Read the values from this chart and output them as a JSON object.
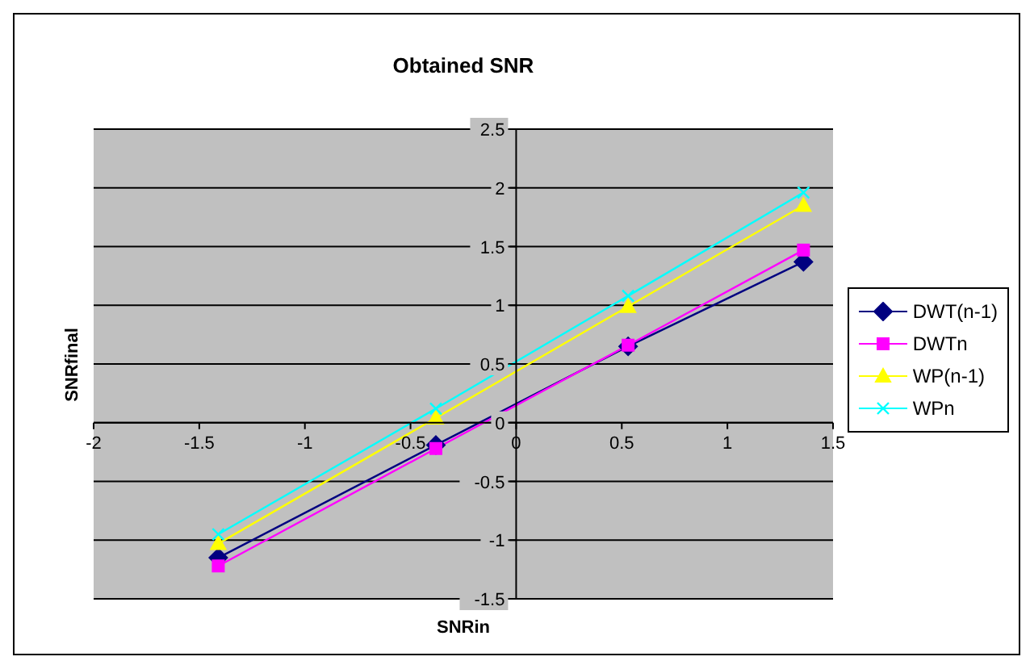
{
  "chart_data": {
    "type": "line",
    "title": "Obtained SNR",
    "xlabel": "SNRin",
    "ylabel": "SNRfinal",
    "x": [
      -1.41,
      -0.38,
      0.53,
      1.36
    ],
    "series": [
      {
        "name": "DWT(n-1)",
        "color": "#000080",
        "marker": "diamond",
        "values": [
          -1.15,
          -0.19,
          0.65,
          1.37
        ]
      },
      {
        "name": "DWTn",
        "color": "#ff00ff",
        "marker": "square",
        "values": [
          -1.22,
          -0.22,
          0.66,
          1.47
        ]
      },
      {
        "name": "WP(n-1)",
        "color": "#ffff00",
        "marker": "triangle",
        "values": [
          -1.03,
          0.04,
          0.99,
          1.85
        ]
      },
      {
        "name": "WPn",
        "color": "#00ffff",
        "marker": "cross",
        "values": [
          -0.95,
          0.12,
          1.08,
          1.96
        ]
      }
    ],
    "xlim": [
      -2,
      1.5
    ],
    "xticks": [
      -2,
      -1.5,
      -1,
      -0.5,
      0,
      0.5,
      1,
      1.5
    ],
    "ylim": [
      -1.5,
      2.5
    ],
    "yticks": [
      -1.5,
      -1,
      -0.5,
      0,
      0.5,
      1,
      1.5,
      2,
      2.5
    ],
    "grid": "y",
    "legend": "right"
  }
}
